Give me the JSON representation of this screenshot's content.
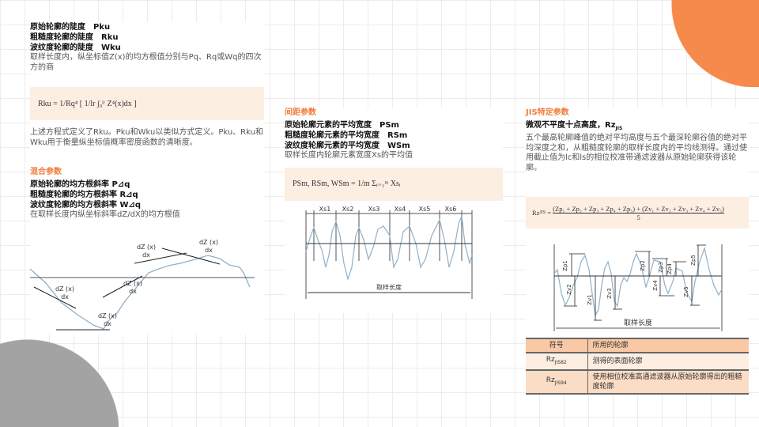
{
  "left": {
    "kurtosis": {
      "lines": [
        "原始轮廓的陡度　Pku",
        "粗糙度轮廓的陡度　Rku",
        "波纹度轮廓的陡度　Wku"
      ],
      "desc": "取样长度内，纵坐标值Z(x)的均方根值分别与Pq、Rq或Wq的四次方的商",
      "formula": "Rku = 1/Rq⁴ [ 1/lr ∫₀ˡʳ Z⁴(x)dx ]",
      "note": "上述方程式定义了Rku。Pku和Wku以类似方式定义。Pku、Rku和Wku用于衡量纵坐标值概率密度函数的清晰度。"
    },
    "hybrid": {
      "heading": "混合参数",
      "lines": [
        "原始轮廓的均方根斜率 P⊿q",
        "粗糙度轮廓的均方根斜率 R⊿q",
        "波纹度轮廓的均方根斜率 W⊿q"
      ],
      "desc": "在取样长度内纵坐标斜率dZ/dX的均方根值",
      "diagram_label_num": "dZ (x)",
      "diagram_label_den": "dx"
    }
  },
  "middle": {
    "heading": "间距参数",
    "lines": [
      "原始轮廓元素的平均宽度　PSm",
      "粗糙度轮廓元素的平均宽度　RSm",
      "波纹度轮廓元素的平均宽度　WSm"
    ],
    "desc": "取样长度内轮廓元素宽度Xs的平均值",
    "formula": "PSm, RSm, WSm = 1/m Σᵢ₌₁ᵐ Xsᵢ",
    "segments": [
      "Xs1",
      "Xs2",
      "Xs3",
      "Xs4",
      "Xs5",
      "Xs6"
    ],
    "sampling_length": "取样长度"
  },
  "right": {
    "heading": "JIS特定参数",
    "title": "微观不平度十点高度，Rz",
    "title_sub": "JIS",
    "desc": "五个最高轮廓峰值的绝对平均高度与五个最深轮廓谷值的绝对平均深度之和，从粗糙度轮廓的取样长度内的平均线测得。通过使用截止值为lc和ls的相位校准带通滤波器从原始轮廓获得该轮廓。",
    "formula_lhs": "Rz",
    "formula_lhs_sub": "JIS",
    "formula_num": "(Zp₁ + Zp₂ + Zp₃ + Zp₄ + Zp₅) + (Zv₁ + Zv₂ + Zv₃ + Zv₄ + Zv₅)",
    "formula_den": "5",
    "peaks": [
      "Zp1",
      "Zp2",
      "Zp3",
      "Zp4",
      "Zp5"
    ],
    "valleys": [
      "Zv1",
      "Zv2",
      "Zv3",
      "Zv4",
      "Zv5"
    ],
    "sampling_length": "取样长度",
    "table": {
      "headers": [
        "符号",
        "所用的轮廓"
      ],
      "rows": [
        {
          "sym": "Rz",
          "sub": "JIS82",
          "desc": "测得的表面轮廓"
        },
        {
          "sym": "Rz",
          "sub": "JIS94",
          "desc": "使用相位校准高通滤波器从原始轮廓得出的粗糙度轮廓"
        }
      ]
    }
  }
}
